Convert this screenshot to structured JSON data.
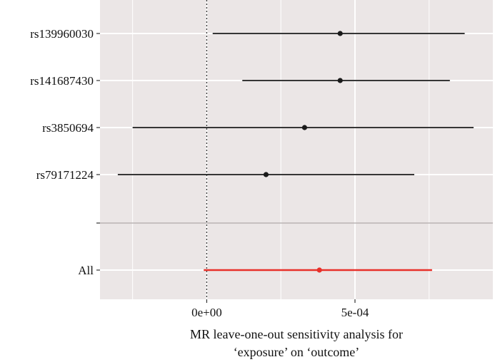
{
  "chart_data": {
    "type": "forest",
    "title": "",
    "xlabel_lines": [
      "MR leave-one-out sensitivity analysis for",
      "‘exposure’ on ‘outcome’"
    ],
    "ylabel": "",
    "xlim": [
      -0.00036,
      0.000965
    ],
    "xticks": [
      {
        "value": 0,
        "label": "0e+00"
      },
      {
        "value": 0.0005,
        "label": "5e-04"
      }
    ],
    "reference_line": 0,
    "rows": [
      {
        "label": "rs139960030",
        "estimate": 0.00045,
        "lower": 2e-05,
        "upper": 0.00087,
        "color": "#1a1a1a"
      },
      {
        "label": "rs141687430",
        "estimate": 0.00045,
        "lower": 0.00012,
        "upper": 0.00082,
        "color": "#1a1a1a"
      },
      {
        "label": "rs3850694",
        "estimate": 0.00033,
        "lower": -0.00025,
        "upper": 0.0009,
        "color": "#1a1a1a"
      },
      {
        "label": "rs79171224",
        "estimate": 0.0002,
        "lower": -0.0003,
        "upper": 0.0007,
        "color": "#1a1a1a"
      },
      {
        "label": "",
        "separator": true
      },
      {
        "label": "All",
        "estimate": 0.00038,
        "lower": -1e-05,
        "upper": 0.00076,
        "color": "#e8302a"
      }
    ],
    "colors": {
      "panel_background": "#ebe6e6",
      "grid": "#ffffff",
      "separator": "#b9b4b4",
      "reference": "#333333",
      "axis_text": "#111111"
    }
  }
}
